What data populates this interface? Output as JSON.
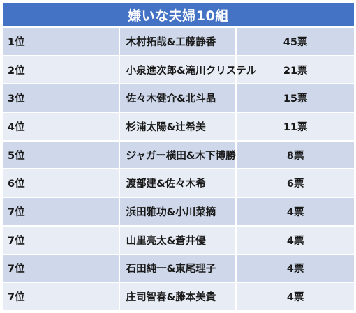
{
  "theme": {
    "header_bg": "#4472c4",
    "row_dark": "#cfd8ea",
    "row_light": "#e8edf5"
  },
  "title": "嫌いな夫婦10組",
  "rows": [
    {
      "rank": "1位",
      "name": "木村拓哉&工藤静香",
      "votes": "45票"
    },
    {
      "rank": "2位",
      "name": "小泉進次郎&滝川クリステル",
      "votes": "21票"
    },
    {
      "rank": "3位",
      "name": "佐々木健介&北斗晶",
      "votes": "15票"
    },
    {
      "rank": "4位",
      "name": "杉浦太陽&辻希美",
      "votes": "11票"
    },
    {
      "rank": "5位",
      "name": "ジャガー横田&木下博勝",
      "votes": "8票"
    },
    {
      "rank": "6位",
      "name": "渡部建&佐々木希",
      "votes": "6票"
    },
    {
      "rank": "7位",
      "name": "浜田雅功&小川菜摘",
      "votes": "4票"
    },
    {
      "rank": "7位",
      "name": "山里亮太&蒼井優",
      "votes": "4票"
    },
    {
      "rank": "7位",
      "name": "石田純一&東尾理子",
      "votes": "4票"
    },
    {
      "rank": "7位",
      "name": "庄司智春&藤本美貴",
      "votes": "4票"
    }
  ]
}
